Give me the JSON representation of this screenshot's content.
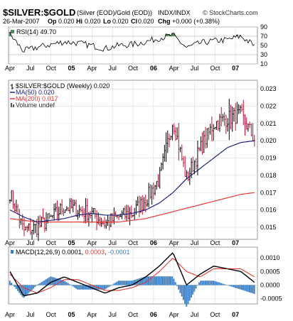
{
  "header": {
    "symbol": "$SILVER:$GOLD",
    "description": "(Silver (EOD)/Gold (EOD))",
    "exchange": "INDX/INDX",
    "copyright": "© StockCharts.com",
    "date": "26-Mar-2007",
    "open_label": "Op",
    "open": "0.020",
    "high_label": "Hi",
    "high": "0.020",
    "low_label": "Lo",
    "low": "0.020",
    "close_label": "Cl",
    "close": "0.020",
    "change_label": "Chg",
    "change": "+0.000 (+0.38%)"
  },
  "rsi_panel": {
    "legend": "RSI(14) 49.70",
    "ticks": [
      90,
      70,
      50,
      30,
      10
    ]
  },
  "price_panel": {
    "legend": [
      {
        "text": "$SILVER:$GOLD (Weekly) 0.020",
        "color": "#000000",
        "marker": "bar"
      },
      {
        "text": "MA(50) 0.020",
        "color": "#1a237e",
        "marker": "line"
      },
      {
        "text": "MA(200) 0.017",
        "color": "#e53935",
        "marker": "line"
      },
      {
        "text": "Volume undef",
        "color": "#555555",
        "marker": "vol"
      }
    ],
    "y_ticks": [
      "0.023",
      "0.022",
      "0.021",
      "0.020",
      "0.019",
      "0.018",
      "0.017",
      "0.016",
      "0.015"
    ]
  },
  "macd_panel": {
    "legend_prefix": "MACD(12,26,9)",
    "macd_value": "0.0001",
    "signal_value": "0.0003",
    "hist_value": "-0.0001",
    "y_ticks": [
      "0.0010",
      "0.0005",
      "0.0000",
      "-0.0005"
    ]
  },
  "x_axis_labels": [
    "Apr",
    "Jul",
    "Oct",
    "05",
    "Apr",
    "Jul",
    "Oct",
    "06",
    "Apr",
    "Jul",
    "Oct",
    "07"
  ],
  "colors": {
    "up": "#000000",
    "down": "#d10a2e",
    "ma50": "#1a237e",
    "ma200": "#e53935",
    "macd": "#000000",
    "signal": "#e53935",
    "hist": "#3b7fc4",
    "rsi_fill": "#4c8c5a",
    "grid": "#dcdcdc"
  },
  "chart_data": [
    {
      "type": "line",
      "title": "$SILVER:$GOLD (Weekly)",
      "x": [
        "2004-04",
        "2004-06",
        "2004-08",
        "2004-10",
        "2004-12",
        "2005-02",
        "2005-04",
        "2005-06",
        "2005-08",
        "2005-10",
        "2005-12",
        "2006-02",
        "2006-04",
        "2006-06",
        "2006-08",
        "2006-10",
        "2006-12",
        "2007-02",
        "2007-03"
      ],
      "series": [
        {
          "name": "$SILVER:$GOLD",
          "values": [
            0.017,
            0.0148,
            0.015,
            0.0155,
            0.0162,
            0.016,
            0.0158,
            0.0152,
            0.0156,
            0.0158,
            0.0166,
            0.0178,
            0.0212,
            0.0178,
            0.0195,
            0.021,
            0.0213,
            0.0215,
            0.0201
          ]
        },
        {
          "name": "MA(50)",
          "values": [
            0.016,
            0.0156,
            0.0153,
            0.0154,
            0.0155,
            0.0157,
            0.0158,
            0.0157,
            0.0157,
            0.0158,
            0.016,
            0.0164,
            0.017,
            0.0178,
            0.0184,
            0.019,
            0.0196,
            0.0199,
            0.02
          ]
        },
        {
          "name": "MA(200)",
          "values": [
            0.0155,
            0.0154,
            0.0153,
            0.0153,
            0.0153,
            0.0153,
            0.0153,
            0.0153,
            0.0153,
            0.0154,
            0.0155,
            0.0157,
            0.0159,
            0.0161,
            0.0163,
            0.0165,
            0.0167,
            0.0169,
            0.017
          ]
        }
      ],
      "ylim": [
        0.0143,
        0.0235
      ]
    },
    {
      "type": "line",
      "title": "RSI(14)",
      "x": [
        "2004-04",
        "2004-06",
        "2004-08",
        "2004-10",
        "2004-12",
        "2005-02",
        "2005-04",
        "2005-06",
        "2005-08",
        "2005-10",
        "2005-12",
        "2006-02",
        "2006-04",
        "2006-06",
        "2006-08",
        "2006-10",
        "2006-12",
        "2007-02",
        "2007-03"
      ],
      "series": [
        {
          "name": "RSI(14)",
          "values": [
            74,
            38,
            46,
            52,
            58,
            55,
            50,
            43,
            50,
            52,
            58,
            66,
            72,
            45,
            55,
            60,
            62,
            70,
            49.7
          ]
        }
      ],
      "ylim": [
        10,
        90
      ]
    },
    {
      "type": "line",
      "title": "MACD(12,26,9)",
      "x": [
        "2004-04",
        "2004-06",
        "2004-08",
        "2004-10",
        "2004-12",
        "2005-02",
        "2005-04",
        "2005-06",
        "2005-08",
        "2005-10",
        "2005-12",
        "2006-02",
        "2006-04",
        "2006-06",
        "2006-08",
        "2006-10",
        "2006-12",
        "2007-02",
        "2007-03"
      ],
      "series": [
        {
          "name": "MACD",
          "values": [
            0.0005,
            -0.0004,
            -0.0003,
            0.0001,
            0.0003,
            0.0001,
            -0.0001,
            -0.0003,
            -0.0001,
            0.0,
            0.0003,
            0.0007,
            0.0012,
            0.0,
            0.0004,
            0.0007,
            0.0006,
            0.0005,
            0.0001
          ]
        },
        {
          "name": "Signal",
          "values": [
            0.0004,
            -0.0001,
            -0.0003,
            -0.0001,
            0.0002,
            0.0002,
            0.0,
            -0.0002,
            -0.0002,
            -0.0001,
            0.0001,
            0.0005,
            0.001,
            0.0005,
            0.0003,
            0.0006,
            0.0006,
            0.0006,
            0.0003
          ]
        },
        {
          "name": "Histogram",
          "values": [
            0.0001,
            -0.0003,
            0.0,
            0.0002,
            0.0001,
            -0.0001,
            -0.0001,
            -0.0001,
            0.0001,
            0.0001,
            0.0002,
            0.0002,
            0.0002,
            -0.0005,
            0.0001,
            0.0001,
            0.0,
            -0.0001,
            -0.0001
          ]
        }
      ],
      "ylim": [
        -0.0007,
        0.0014
      ]
    }
  ]
}
